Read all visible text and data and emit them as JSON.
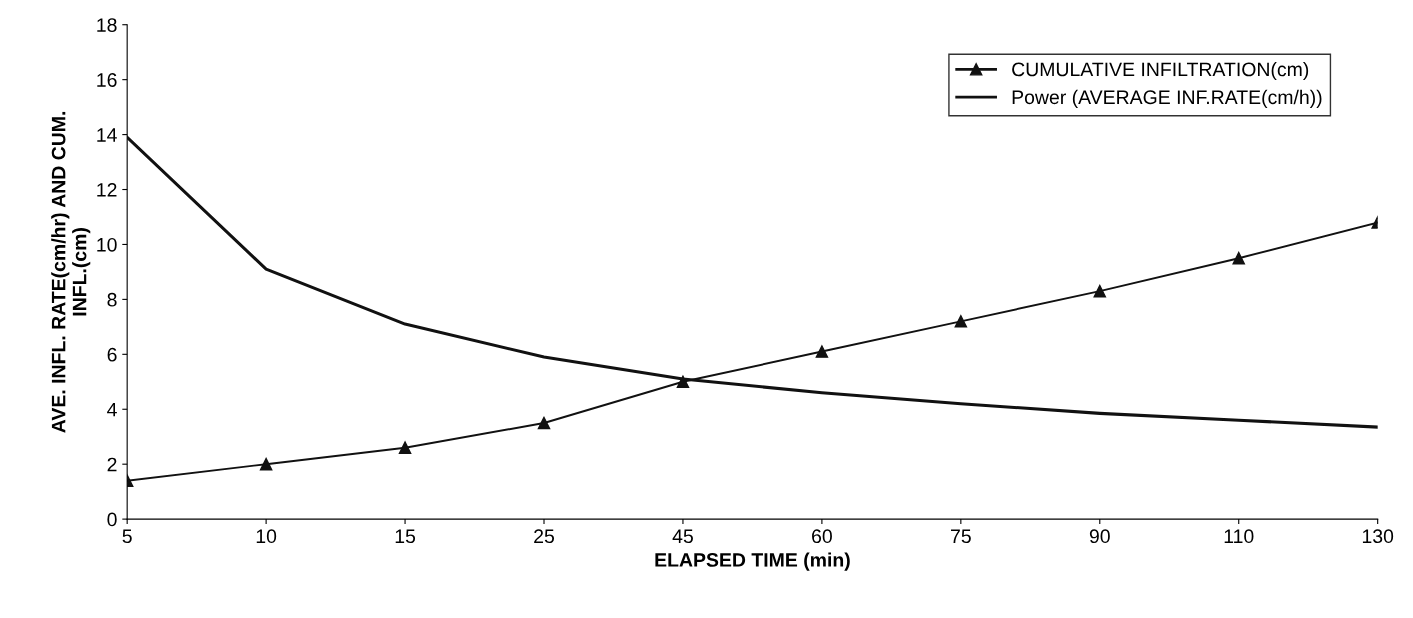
{
  "chart_data": {
    "type": "line",
    "xlabel": "ELAPSED TIME (min)",
    "ylabel": "AVE. INFL. RATE(cm/hr) AND CUM.\nINFL.(cm)",
    "categories": [
      "5",
      "10",
      "15",
      "25",
      "45",
      "60",
      "75",
      "90",
      "110",
      "130"
    ],
    "series": [
      {
        "name": "CUMULATIVE INFILTRATION(cm)",
        "color": "#111111",
        "marker": "triangle",
        "values": [
          1.4,
          2.0,
          2.6,
          3.5,
          5.0,
          6.1,
          7.2,
          8.3,
          9.5,
          10.8
        ]
      },
      {
        "name": "Power (AVERAGE INF.RATE(cm/h))",
        "color": "#111111",
        "marker": "none",
        "values": [
          13.9,
          9.1,
          7.1,
          5.9,
          5.1,
          4.6,
          4.2,
          3.85,
          3.6,
          3.35
        ]
      }
    ],
    "ylim": [
      0,
      18
    ],
    "yticks": [
      0,
      2,
      4,
      6,
      8,
      10,
      12,
      14,
      16,
      18
    ],
    "grid": false,
    "legend": "top right",
    "line_style": "solid"
  }
}
